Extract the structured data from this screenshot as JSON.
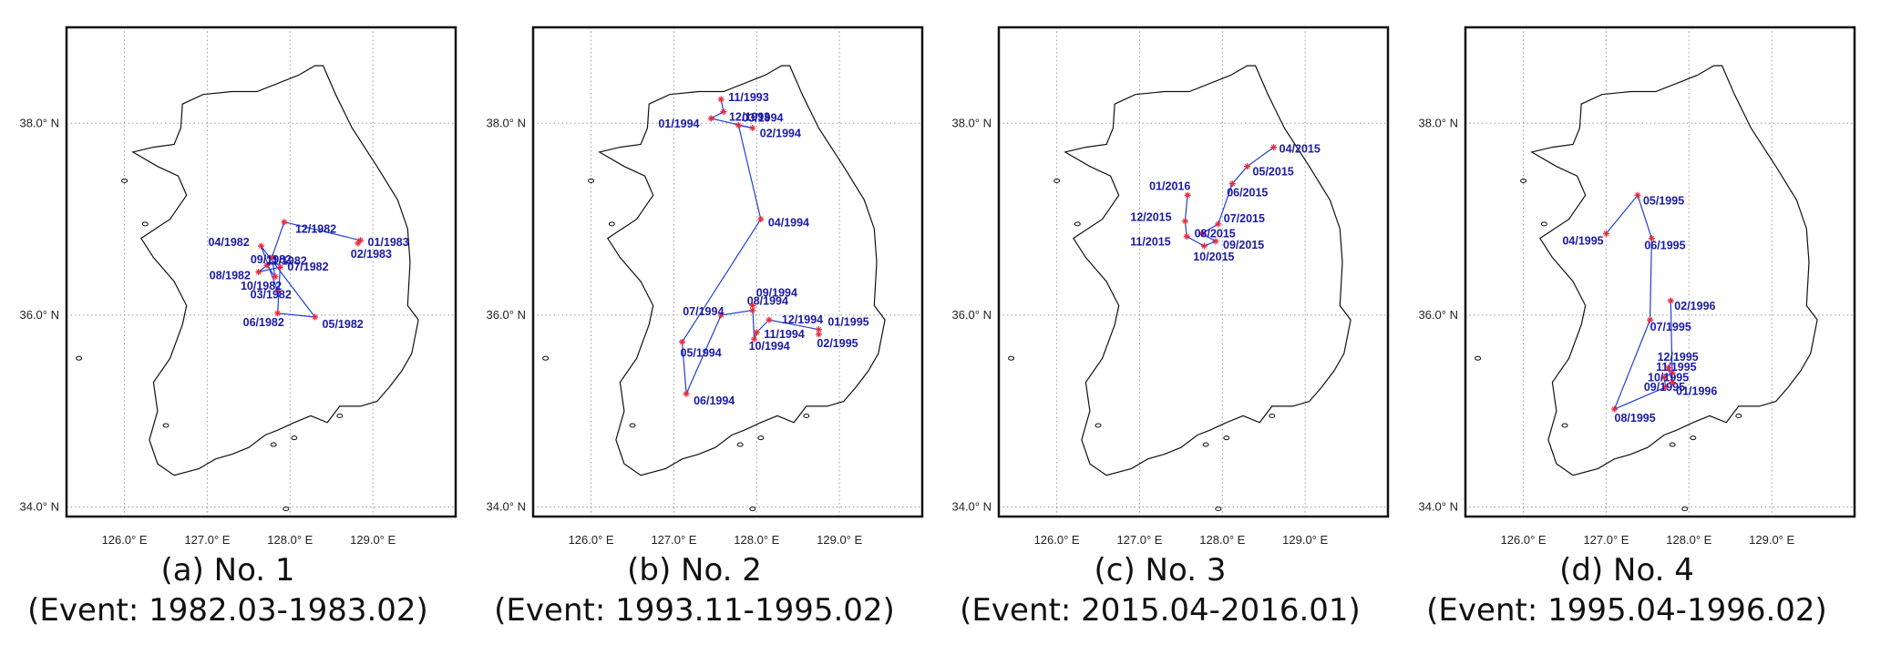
{
  "map": {
    "lon_range": [
      125.3,
      130.0
    ],
    "lat_range": [
      33.9,
      39.0
    ],
    "gridlines": "dotted",
    "x_ticks": [
      "126.0° E",
      "127.0° E",
      "128.0° E",
      "129.0° E"
    ],
    "y_ticks": [
      "34.0° N",
      "36.0° N",
      "38.0° N"
    ],
    "x_tick_values": [
      126.0,
      127.0,
      128.0,
      129.0
    ],
    "y_tick_values": [
      34.0,
      36.0,
      38.0
    ],
    "track_color": "#1f3fd8",
    "marker_color": "#e8283a",
    "label_color": "#1a1aa8"
  },
  "panels": [
    {
      "caption": "(a) No. 1",
      "event": "(Event: 1982.03-1983.02)",
      "points": [
        {
          "label": "03/1982",
          "lon": 127.85,
          "lat": 36.25
        },
        {
          "label": "04/1982",
          "lon": 127.65,
          "lat": 36.72
        },
        {
          "label": "05/1982",
          "lon": 128.3,
          "lat": 35.98
        },
        {
          "label": "06/1982",
          "lon": 127.85,
          "lat": 36.02
        },
        {
          "label": "07/1982",
          "lon": 127.88,
          "lat": 36.5
        },
        {
          "label": "08/1982",
          "lon": 127.62,
          "lat": 36.45
        },
        {
          "label": "09/1982",
          "lon": 127.72,
          "lat": 36.52
        },
        {
          "label": "10/1982",
          "lon": 127.82,
          "lat": 36.4
        },
        {
          "label": "11/1982",
          "lon": 127.78,
          "lat": 36.6
        },
        {
          "label": "12/1982",
          "lon": 127.93,
          "lat": 36.97
        },
        {
          "label": "01/1983",
          "lon": 128.85,
          "lat": 36.78
        },
        {
          "label": "02/1983",
          "lon": 128.82,
          "lat": 36.75
        }
      ]
    },
    {
      "caption": "(b) No. 2",
      "event": "(Event: 1993.11-1995.02)",
      "points": [
        {
          "label": "11/1993",
          "lon": 127.57,
          "lat": 38.25
        },
        {
          "label": "12/1993",
          "lon": 127.6,
          "lat": 38.12
        },
        {
          "label": "01/1994",
          "lon": 127.45,
          "lat": 38.05
        },
        {
          "label": "02/1994",
          "lon": 127.95,
          "lat": 37.95
        },
        {
          "label": "03/1994",
          "lon": 127.78,
          "lat": 37.98
        },
        {
          "label": "04/1994",
          "lon": 128.05,
          "lat": 37.0
        },
        {
          "label": "05/1994",
          "lon": 127.1,
          "lat": 35.72
        },
        {
          "label": "06/1994",
          "lon": 127.15,
          "lat": 35.18
        },
        {
          "label": "07/1994",
          "lon": 127.57,
          "lat": 36.0
        },
        {
          "label": "08/1994",
          "lon": 127.95,
          "lat": 36.05
        },
        {
          "label": "09/1994",
          "lon": 127.95,
          "lat": 36.1
        },
        {
          "label": "10/1994",
          "lon": 127.97,
          "lat": 35.75
        },
        {
          "label": "11/1994",
          "lon": 128.0,
          "lat": 35.82
        },
        {
          "label": "12/1994",
          "lon": 128.15,
          "lat": 35.95
        },
        {
          "label": "01/1995",
          "lon": 128.75,
          "lat": 35.85
        },
        {
          "label": "02/1995",
          "lon": 128.75,
          "lat": 35.8
        }
      ]
    },
    {
      "caption": "(c) No. 3",
      "event": "(Event: 2015.04-2016.01)",
      "points": [
        {
          "label": "04/2015",
          "lon": 128.62,
          "lat": 37.75
        },
        {
          "label": "05/2015",
          "lon": 128.3,
          "lat": 37.55
        },
        {
          "label": "06/2015",
          "lon": 128.12,
          "lat": 37.37
        },
        {
          "label": "07/2015",
          "lon": 127.95,
          "lat": 36.95
        },
        {
          "label": "08/2015",
          "lon": 127.75,
          "lat": 36.85
        },
        {
          "label": "09/2015",
          "lon": 127.92,
          "lat": 36.77
        },
        {
          "label": "10/2015",
          "lon": 127.78,
          "lat": 36.72
        },
        {
          "label": "11/2015",
          "lon": 127.57,
          "lat": 36.82
        },
        {
          "label": "12/2015",
          "lon": 127.55,
          "lat": 36.98
        },
        {
          "label": "01/2016",
          "lon": 127.58,
          "lat": 37.25
        }
      ]
    },
    {
      "caption": "(d) No. 4",
      "event": "(Event: 1995.04-1996.02)",
      "points": [
        {
          "label": "04/1995",
          "lon": 127.0,
          "lat": 36.85
        },
        {
          "label": "05/1995",
          "lon": 127.38,
          "lat": 37.25
        },
        {
          "label": "06/1995",
          "lon": 127.55,
          "lat": 36.8
        },
        {
          "label": "07/1995",
          "lon": 127.53,
          "lat": 35.95
        },
        {
          "label": "08/1995",
          "lon": 127.1,
          "lat": 35.02
        },
        {
          "label": "09/1995",
          "lon": 127.72,
          "lat": 35.25
        },
        {
          "label": "10/1995",
          "lon": 127.7,
          "lat": 35.35
        },
        {
          "label": "11/1995",
          "lon": 127.8,
          "lat": 35.4
        },
        {
          "label": "12/1995",
          "lon": 127.75,
          "lat": 35.45
        },
        {
          "label": "01/1996",
          "lon": 127.8,
          "lat": 35.3
        },
        {
          "label": "02/1996",
          "lon": 127.78,
          "lat": 36.15
        }
      ]
    }
  ]
}
